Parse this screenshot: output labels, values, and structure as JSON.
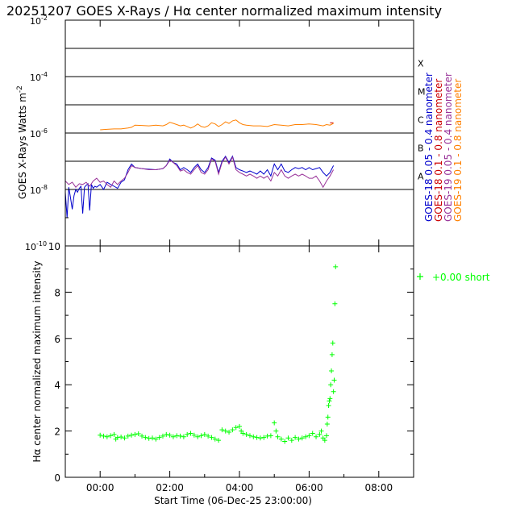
{
  "chart_data": [
    {
      "type": "line",
      "title": "20251207 GOES X-Rays / Hα center normalized maximum intensity",
      "ylabel": "GOES X-Rays Watts m",
      "ylabel_sup": "-2",
      "yscale": "log",
      "ylim": [
        1e-10,
        0.01
      ],
      "xlim": [
        -1,
        9
      ],
      "x_unit": "hours",
      "y_ticks": [
        {
          "label": "10",
          "sup": "-2",
          "value": 0.01
        },
        {
          "label": "10",
          "sup": "-4",
          "value": 0.0001
        },
        {
          "label": "10",
          "sup": "-6",
          "value": 1e-06
        },
        {
          "label": "10",
          "sup": "-8",
          "value": 1e-08
        },
        {
          "label": "10",
          "sup": "-10",
          "value": 1e-10
        }
      ],
      "flare_classes": [
        {
          "label": "X",
          "value": 0.0001
        },
        {
          "label": "M",
          "value": 1e-05
        },
        {
          "label": "C",
          "value": 1e-06
        },
        {
          "label": "B",
          "value": 1e-07
        },
        {
          "label": "A",
          "value": 1e-08
        }
      ],
      "reference_lines": [
        0.001,
        0.0001,
        1e-05,
        1e-06,
        1e-07,
        1e-08
      ],
      "series": [
        {
          "name": "GOES-18 0.05 - 0.4 nanometer",
          "color": "#0000cc",
          "x": [
            -1.0,
            -0.95,
            -0.9,
            -0.85,
            -0.8,
            -0.75,
            -0.7,
            -0.65,
            -0.6,
            -0.55,
            -0.5,
            -0.45,
            -0.4,
            -0.35,
            -0.3,
            -0.25,
            -0.2,
            -0.15,
            -0.1,
            0.0,
            0.1,
            0.2,
            0.3,
            0.4,
            0.5,
            0.6,
            0.7,
            0.8,
            0.9,
            1.0,
            1.2,
            1.4,
            1.6,
            1.8,
            1.9,
            2.0,
            2.1,
            2.2,
            2.3,
            2.4,
            2.5,
            2.6,
            2.7,
            2.8,
            2.9,
            3.0,
            3.1,
            3.2,
            3.3,
            3.4,
            3.5,
            3.6,
            3.7,
            3.8,
            3.9,
            4.0,
            4.1,
            4.2,
            4.3,
            4.4,
            4.5,
            4.6,
            4.7,
            4.8,
            4.9,
            5.0,
            5.1,
            5.2,
            5.3,
            5.4,
            5.5,
            5.6,
            5.7,
            5.8,
            5.9,
            6.0,
            6.1,
            6.2,
            6.3,
            6.4,
            6.5,
            6.6,
            6.7
          ],
          "y": [
            8e-09,
            1e-09,
            1.2e-08,
            5e-09,
            2e-09,
            6e-09,
            1e-08,
            8e-09,
            1.1e-08,
            1.3e-08,
            1.4e-09,
            1.2e-08,
            1.4e-08,
            1.6e-08,
            1.8e-09,
            1.5e-08,
            1.1e-08,
            1.3e-08,
            1.2e-08,
            1.5e-08,
            1e-08,
            1.8e-08,
            1.5e-08,
            1.3e-08,
            1.1e-08,
            1.8e-08,
            2.2e-08,
            5e-08,
            8e-08,
            6e-08,
            5.5e-08,
            5.2e-08,
            5e-08,
            5.5e-08,
            7e-08,
            1.2e-07,
            9e-08,
            8e-08,
            5e-08,
            6e-08,
            5e-08,
            4e-08,
            6e-08,
            8e-08,
            5e-08,
            4e-08,
            6e-08,
            1.3e-07,
            1.1e-07,
            4e-08,
            1e-07,
            1.5e-07,
            9e-08,
            1.5e-07,
            6e-08,
            5e-08,
            4.5e-08,
            4e-08,
            4.5e-08,
            4e-08,
            3.5e-08,
            4.5e-08,
            3.5e-08,
            5e-08,
            3e-08,
            8e-08,
            5e-08,
            8e-08,
            4.5e-08,
            4e-08,
            5e-08,
            6e-08,
            5.5e-08,
            6e-08,
            5e-08,
            6e-08,
            5e-08,
            5.5e-08,
            6e-08,
            4e-08,
            3e-08,
            4e-08,
            7e-08
          ]
        },
        {
          "name": "GOES-18 0.1 - 0.8 nanometer",
          "color": "#cc0000",
          "x": [
            6.6,
            6.7
          ],
          "y": [
            2.3e-06,
            2.3e-06
          ]
        },
        {
          "name": "GOES-19 0.05 - 0.4 nanometer",
          "color": "#993399",
          "x": [
            -1.0,
            -0.9,
            -0.8,
            -0.7,
            -0.6,
            -0.5,
            -0.4,
            -0.3,
            -0.2,
            -0.1,
            0.0,
            0.1,
            0.2,
            0.3,
            0.4,
            0.5,
            0.6,
            0.7,
            0.8,
            0.9,
            1.0,
            1.2,
            1.4,
            1.6,
            1.8,
            1.9,
            2.0,
            2.1,
            2.2,
            2.3,
            2.4,
            2.5,
            2.6,
            2.7,
            2.8,
            2.9,
            3.0,
            3.1,
            3.2,
            3.3,
            3.4,
            3.5,
            3.6,
            3.7,
            3.8,
            3.9,
            4.0,
            4.1,
            4.2,
            4.3,
            4.4,
            4.5,
            4.6,
            4.7,
            4.8,
            4.9,
            5.0,
            5.1,
            5.2,
            5.3,
            5.4,
            5.5,
            5.6,
            5.7,
            5.8,
            5.9,
            6.0,
            6.1,
            6.2,
            6.3,
            6.4,
            6.5,
            6.6,
            6.7
          ],
          "y": [
            2e-08,
            1.5e-08,
            1.8e-08,
            1.2e-08,
            1.6e-08,
            1.5e-08,
            1.8e-08,
            1.3e-08,
            2e-08,
            2.5e-08,
            1.8e-08,
            2e-08,
            1.5e-08,
            1.2e-08,
            2e-08,
            1.5e-08,
            2e-08,
            2.5e-08,
            4e-08,
            7e-08,
            6e-08,
            5.5e-08,
            5e-08,
            5e-08,
            5.5e-08,
            7e-08,
            1.1e-07,
            9e-08,
            7e-08,
            4.5e-08,
            5e-08,
            4e-08,
            3.5e-08,
            5e-08,
            7e-08,
            4e-08,
            3.5e-08,
            5e-08,
            1.2e-07,
            1e-07,
            3.5e-08,
            9e-08,
            1.4e-07,
            8e-08,
            1.4e-07,
            5e-08,
            4e-08,
            3.5e-08,
            3e-08,
            3.5e-08,
            3e-08,
            2.5e-08,
            3e-08,
            2.5e-08,
            3e-08,
            2e-08,
            4e-08,
            3e-08,
            5e-08,
            3e-08,
            2.5e-08,
            3e-08,
            3.5e-08,
            3e-08,
            3.5e-08,
            3e-08,
            2.5e-08,
            2.5e-08,
            3e-08,
            2e-08,
            1.2e-08,
            2e-08,
            3e-08,
            5e-08
          ]
        },
        {
          "name": "GOES-19 0.1 - 0.8 nanometer",
          "color": "#ff8000",
          "x": [
            0.0,
            0.2,
            0.4,
            0.6,
            0.8,
            0.9,
            1.0,
            1.2,
            1.4,
            1.6,
            1.8,
            1.9,
            2.0,
            2.1,
            2.2,
            2.3,
            2.4,
            2.5,
            2.6,
            2.7,
            2.8,
            2.9,
            3.0,
            3.1,
            3.2,
            3.3,
            3.4,
            3.5,
            3.6,
            3.7,
            3.8,
            3.9,
            4.0,
            4.1,
            4.2,
            4.4,
            4.6,
            4.8,
            5.0,
            5.2,
            5.4,
            5.6,
            5.8,
            6.0,
            6.2,
            6.4,
            6.5,
            6.6,
            6.7
          ],
          "y": [
            1.3e-06,
            1.35e-06,
            1.4e-06,
            1.4e-06,
            1.5e-06,
            1.6e-06,
            1.9e-06,
            1.85e-06,
            1.8e-06,
            1.9e-06,
            1.8e-06,
            2e-06,
            2.4e-06,
            2.2e-06,
            2e-06,
            1.8e-06,
            1.9e-06,
            1.7e-06,
            1.5e-06,
            1.7e-06,
            2.1e-06,
            1.7e-06,
            1.6e-06,
            1.8e-06,
            2.3e-06,
            2.1e-06,
            1.7e-06,
            2e-06,
            2.5e-06,
            2.2e-06,
            2.7e-06,
            2.9e-06,
            2.3e-06,
            2e-06,
            1.9e-06,
            1.8e-06,
            1.8e-06,
            1.7e-06,
            2e-06,
            1.9e-06,
            1.8e-06,
            2e-06,
            2e-06,
            2.1e-06,
            2e-06,
            1.8e-06,
            2e-06,
            1.9e-06,
            2.2e-06
          ]
        }
      ]
    },
    {
      "type": "scatter",
      "title": "",
      "xlabel": "Start Time (06-Dec-25 23:00:00)",
      "ylabel": "Hα center normalized maximum intensity",
      "xlim": [
        -1,
        9
      ],
      "ylim": [
        0,
        10
      ],
      "x_unit": "hours",
      "x_ticks": [
        {
          "label": "00:00",
          "value": 0
        },
        {
          "label": "02:00",
          "value": 2
        },
        {
          "label": "04:00",
          "value": 4
        },
        {
          "label": "06:00",
          "value": 6
        },
        {
          "label": "08:00",
          "value": 8
        }
      ],
      "y_ticks": [
        {
          "label": "0",
          "value": 0
        },
        {
          "label": "2",
          "value": 2
        },
        {
          "label": "4",
          "value": 4
        },
        {
          "label": "6",
          "value": 6
        },
        {
          "label": "8",
          "value": 8
        },
        {
          "label": "10",
          "value": 10
        }
      ],
      "marker": "+",
      "color": "#00ff00",
      "legend": {
        "text": "+0.00 short",
        "placement": "right"
      },
      "points": [
        [
          0.0,
          1.82
        ],
        [
          0.1,
          1.78
        ],
        [
          0.2,
          1.75
        ],
        [
          0.3,
          1.8
        ],
        [
          0.4,
          1.85
        ],
        [
          0.45,
          1.65
        ],
        [
          0.5,
          1.72
        ],
        [
          0.6,
          1.74
        ],
        [
          0.7,
          1.7
        ],
        [
          0.8,
          1.78
        ],
        [
          0.9,
          1.82
        ],
        [
          1.0,
          1.85
        ],
        [
          1.1,
          1.88
        ],
        [
          1.2,
          1.78
        ],
        [
          1.3,
          1.72
        ],
        [
          1.4,
          1.68
        ],
        [
          1.5,
          1.7
        ],
        [
          1.6,
          1.65
        ],
        [
          1.7,
          1.72
        ],
        [
          1.8,
          1.78
        ],
        [
          1.9,
          1.85
        ],
        [
          2.0,
          1.82
        ],
        [
          2.1,
          1.75
        ],
        [
          2.2,
          1.8
        ],
        [
          2.3,
          1.78
        ],
        [
          2.4,
          1.75
        ],
        [
          2.5,
          1.85
        ],
        [
          2.6,
          1.9
        ],
        [
          2.7,
          1.82
        ],
        [
          2.8,
          1.75
        ],
        [
          2.9,
          1.8
        ],
        [
          3.0,
          1.85
        ],
        [
          3.1,
          1.78
        ],
        [
          3.2,
          1.72
        ],
        [
          3.3,
          1.65
        ],
        [
          3.4,
          1.6
        ],
        [
          3.5,
          2.05
        ],
        [
          3.6,
          2.0
        ],
        [
          3.7,
          1.95
        ],
        [
          3.8,
          2.05
        ],
        [
          3.9,
          2.15
        ],
        [
          4.0,
          2.2
        ],
        [
          4.05,
          2.0
        ],
        [
          4.1,
          1.9
        ],
        [
          4.2,
          1.85
        ],
        [
          4.3,
          1.8
        ],
        [
          4.4,
          1.75
        ],
        [
          4.5,
          1.72
        ],
        [
          4.6,
          1.7
        ],
        [
          4.7,
          1.72
        ],
        [
          4.8,
          1.78
        ],
        [
          4.9,
          1.8
        ],
        [
          5.0,
          2.35
        ],
        [
          5.05,
          2.0
        ],
        [
          5.1,
          1.75
        ],
        [
          5.2,
          1.65
        ],
        [
          5.3,
          1.55
        ],
        [
          5.4,
          1.7
        ],
        [
          5.5,
          1.6
        ],
        [
          5.6,
          1.72
        ],
        [
          5.7,
          1.65
        ],
        [
          5.8,
          1.7
        ],
        [
          5.9,
          1.75
        ],
        [
          6.0,
          1.8
        ],
        [
          6.1,
          1.9
        ],
        [
          6.2,
          1.75
        ],
        [
          6.3,
          1.85
        ],
        [
          6.35,
          2.0
        ],
        [
          6.4,
          1.7
        ],
        [
          6.45,
          1.6
        ],
        [
          6.5,
          1.8
        ],
        [
          6.52,
          2.3
        ],
        [
          6.54,
          2.6
        ],
        [
          6.56,
          3.1
        ],
        [
          6.58,
          3.3
        ],
        [
          6.6,
          3.4
        ],
        [
          6.62,
          4.0
        ],
        [
          6.64,
          4.6
        ],
        [
          6.66,
          5.3
        ],
        [
          6.68,
          5.8
        ],
        [
          6.7,
          3.7
        ],
        [
          6.72,
          4.2
        ],
        [
          6.74,
          7.5
        ],
        [
          6.76,
          9.1
        ]
      ]
    }
  ]
}
